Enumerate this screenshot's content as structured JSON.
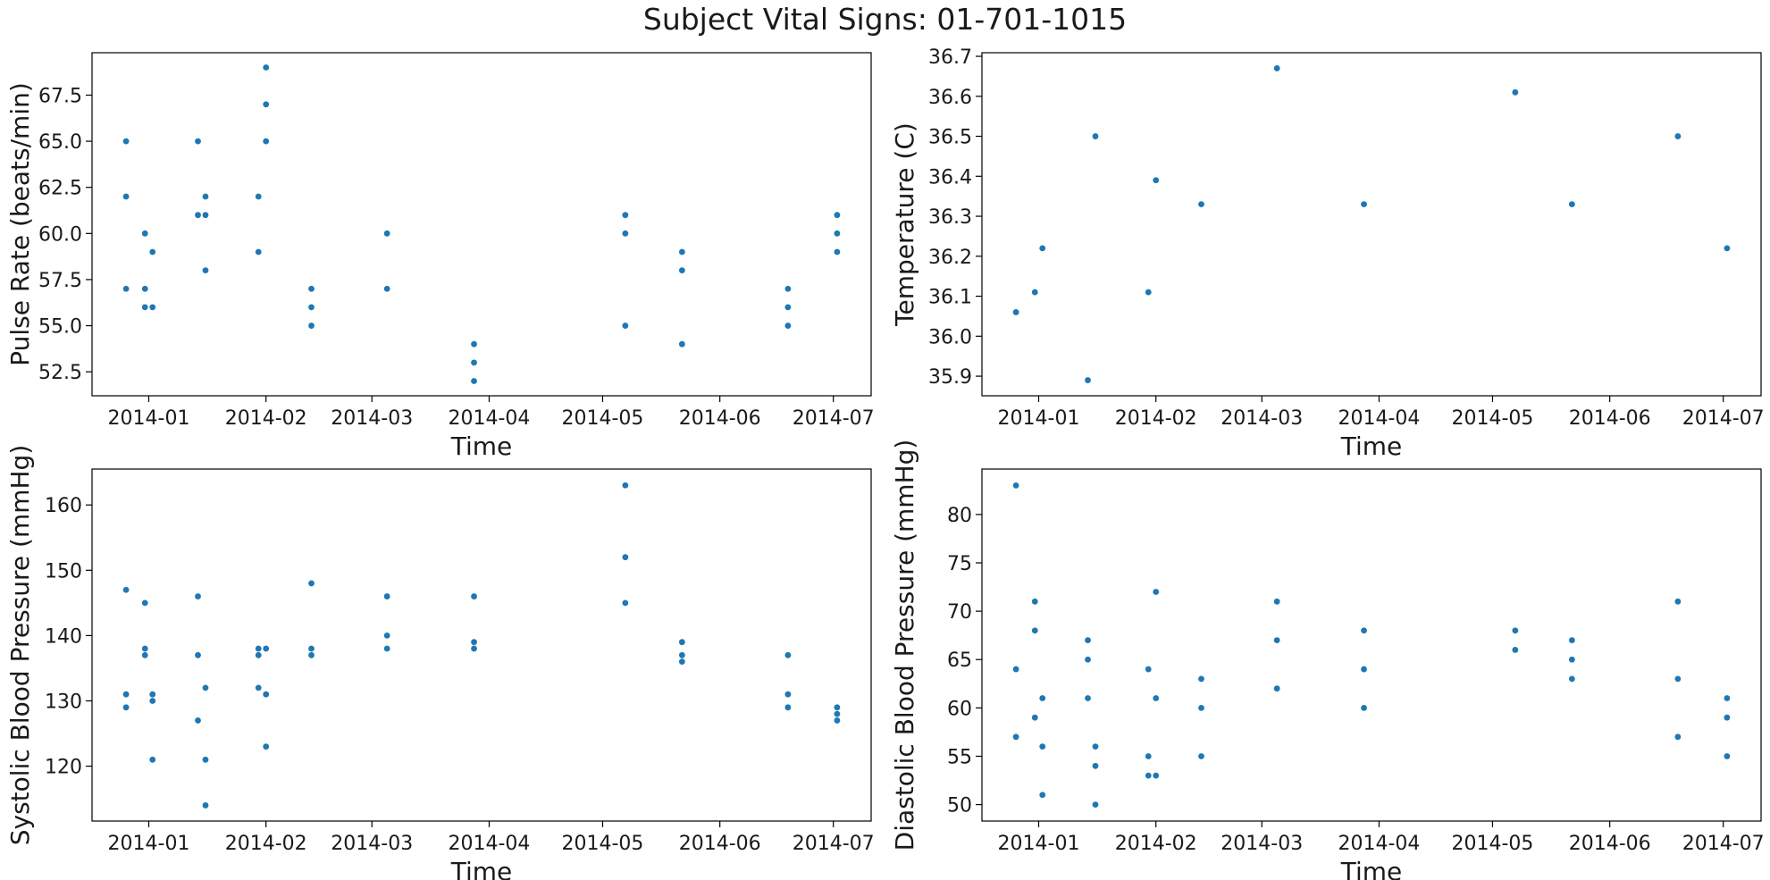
{
  "figure": {
    "title": "Subject Vital Signs: 01-701-1015"
  },
  "style": {
    "point_color": "#1f77b4",
    "axis_color": "#000000",
    "text_color": "#1a1a1a"
  },
  "chart_data": [
    {
      "type": "scatter",
      "id": "pulse",
      "xlabel": "Time",
      "ylabel": "Pulse Rate (beats/min)",
      "grid": false,
      "x_ticks": [
        "2014-01",
        "2014-02",
        "2014-03",
        "2014-04",
        "2014-05",
        "2014-06",
        "2014-07"
      ],
      "y_ticks": [
        "52.5",
        "55.0",
        "57.5",
        "60.0",
        "62.5",
        "65.0",
        "67.5"
      ],
      "xlim": [
        "2013-12-17",
        "2014-07-11"
      ],
      "ylim": [
        51.2,
        69.8
      ],
      "points": [
        {
          "x": "2013-12-26",
          "y": 65
        },
        {
          "x": "2013-12-26",
          "y": 62
        },
        {
          "x": "2013-12-26",
          "y": 57
        },
        {
          "x": "2013-12-31",
          "y": 60
        },
        {
          "x": "2013-12-31",
          "y": 57
        },
        {
          "x": "2013-12-31",
          "y": 56
        },
        {
          "x": "2014-01-02",
          "y": 59
        },
        {
          "x": "2014-01-02",
          "y": 56
        },
        {
          "x": "2014-01-14",
          "y": 65
        },
        {
          "x": "2014-01-14",
          "y": 61
        },
        {
          "x": "2014-01-16",
          "y": 62
        },
        {
          "x": "2014-01-16",
          "y": 61
        },
        {
          "x": "2014-01-16",
          "y": 58
        },
        {
          "x": "2014-01-30",
          "y": 62
        },
        {
          "x": "2014-01-30",
          "y": 59
        },
        {
          "x": "2014-02-01",
          "y": 69
        },
        {
          "x": "2014-02-01",
          "y": 67
        },
        {
          "x": "2014-02-01",
          "y": 65
        },
        {
          "x": "2014-02-13",
          "y": 57
        },
        {
          "x": "2014-02-13",
          "y": 56
        },
        {
          "x": "2014-02-13",
          "y": 55
        },
        {
          "x": "2014-03-05",
          "y": 60
        },
        {
          "x": "2014-03-05",
          "y": 57
        },
        {
          "x": "2014-03-28",
          "y": 54
        },
        {
          "x": "2014-03-28",
          "y": 53
        },
        {
          "x": "2014-03-28",
          "y": 52
        },
        {
          "x": "2014-05-07",
          "y": 61
        },
        {
          "x": "2014-05-07",
          "y": 60
        },
        {
          "x": "2014-05-07",
          "y": 55
        },
        {
          "x": "2014-05-22",
          "y": 59
        },
        {
          "x": "2014-05-22",
          "y": 58
        },
        {
          "x": "2014-05-22",
          "y": 54
        },
        {
          "x": "2014-06-19",
          "y": 57
        },
        {
          "x": "2014-06-19",
          "y": 56
        },
        {
          "x": "2014-06-19",
          "y": 55
        },
        {
          "x": "2014-07-02",
          "y": 61
        },
        {
          "x": "2014-07-02",
          "y": 60
        },
        {
          "x": "2014-07-02",
          "y": 59
        }
      ]
    },
    {
      "type": "scatter",
      "id": "temperature",
      "xlabel": "Time",
      "ylabel": "Temperature (C)",
      "grid": false,
      "x_ticks": [
        "2014-01",
        "2014-02",
        "2014-03",
        "2014-04",
        "2014-05",
        "2014-06",
        "2014-07"
      ],
      "y_ticks": [
        "35.9",
        "36.0",
        "36.1",
        "36.2",
        "36.3",
        "36.4",
        "36.5",
        "36.6",
        "36.7"
      ],
      "xlim": [
        "2013-12-17",
        "2014-07-11"
      ],
      "ylim": [
        35.851,
        36.709
      ],
      "points": [
        {
          "x": "2013-12-26",
          "y": 36.06
        },
        {
          "x": "2013-12-31",
          "y": 36.11
        },
        {
          "x": "2014-01-02",
          "y": 36.22
        },
        {
          "x": "2014-01-14",
          "y": 35.89
        },
        {
          "x": "2014-01-16",
          "y": 36.5
        },
        {
          "x": "2014-01-30",
          "y": 36.11
        },
        {
          "x": "2014-02-01",
          "y": 36.39
        },
        {
          "x": "2014-02-13",
          "y": 36.33
        },
        {
          "x": "2014-03-05",
          "y": 36.67
        },
        {
          "x": "2014-03-28",
          "y": 36.33
        },
        {
          "x": "2014-05-07",
          "y": 36.61
        },
        {
          "x": "2014-05-22",
          "y": 36.33
        },
        {
          "x": "2014-06-19",
          "y": 36.5
        },
        {
          "x": "2014-07-02",
          "y": 36.22
        }
      ]
    },
    {
      "type": "scatter",
      "id": "systolic",
      "xlabel": "Time",
      "ylabel": "Systolic Blood Pressure (mmHg)",
      "grid": false,
      "x_ticks": [
        "2014-01",
        "2014-02",
        "2014-03",
        "2014-04",
        "2014-05",
        "2014-06",
        "2014-07"
      ],
      "y_ticks": [
        "120",
        "130",
        "140",
        "150",
        "160"
      ],
      "xlim": [
        "2013-12-17",
        "2014-07-11"
      ],
      "ylim": [
        111.6,
        165.5
      ],
      "points": [
        {
          "x": "2013-12-26",
          "y": 147
        },
        {
          "x": "2013-12-26",
          "y": 131
        },
        {
          "x": "2013-12-26",
          "y": 129
        },
        {
          "x": "2013-12-31",
          "y": 145
        },
        {
          "x": "2013-12-31",
          "y": 138
        },
        {
          "x": "2013-12-31",
          "y": 137
        },
        {
          "x": "2014-01-02",
          "y": 131
        },
        {
          "x": "2014-01-02",
          "y": 130
        },
        {
          "x": "2014-01-02",
          "y": 121
        },
        {
          "x": "2014-01-14",
          "y": 146
        },
        {
          "x": "2014-01-14",
          "y": 137
        },
        {
          "x": "2014-01-14",
          "y": 127
        },
        {
          "x": "2014-01-16",
          "y": 132
        },
        {
          "x": "2014-01-16",
          "y": 121
        },
        {
          "x": "2014-01-16",
          "y": 114
        },
        {
          "x": "2014-01-30",
          "y": 138
        },
        {
          "x": "2014-01-30",
          "y": 137
        },
        {
          "x": "2014-01-30",
          "y": 132
        },
        {
          "x": "2014-02-01",
          "y": 138
        },
        {
          "x": "2014-02-01",
          "y": 131
        },
        {
          "x": "2014-02-01",
          "y": 123
        },
        {
          "x": "2014-02-13",
          "y": 148
        },
        {
          "x": "2014-02-13",
          "y": 138
        },
        {
          "x": "2014-02-13",
          "y": 137
        },
        {
          "x": "2014-03-05",
          "y": 146
        },
        {
          "x": "2014-03-05",
          "y": 140
        },
        {
          "x": "2014-03-05",
          "y": 138
        },
        {
          "x": "2014-03-28",
          "y": 146
        },
        {
          "x": "2014-03-28",
          "y": 139
        },
        {
          "x": "2014-03-28",
          "y": 138
        },
        {
          "x": "2014-05-07",
          "y": 163
        },
        {
          "x": "2014-05-07",
          "y": 152
        },
        {
          "x": "2014-05-07",
          "y": 145
        },
        {
          "x": "2014-05-22",
          "y": 139
        },
        {
          "x": "2014-05-22",
          "y": 137
        },
        {
          "x": "2014-05-22",
          "y": 136
        },
        {
          "x": "2014-06-19",
          "y": 137
        },
        {
          "x": "2014-06-19",
          "y": 131
        },
        {
          "x": "2014-06-19",
          "y": 129
        },
        {
          "x": "2014-07-02",
          "y": 129
        },
        {
          "x": "2014-07-02",
          "y": 128
        },
        {
          "x": "2014-07-02",
          "y": 127
        }
      ]
    },
    {
      "type": "scatter",
      "id": "diastolic",
      "xlabel": "Time",
      "ylabel": "Diastolic Blood Pressure (mmHg)",
      "grid": false,
      "x_ticks": [
        "2014-01",
        "2014-02",
        "2014-03",
        "2014-04",
        "2014-05",
        "2014-06",
        "2014-07"
      ],
      "y_ticks": [
        "50",
        "55",
        "60",
        "65",
        "70",
        "75",
        "80"
      ],
      "xlim": [
        "2013-12-17",
        "2014-07-11"
      ],
      "ylim": [
        48.3,
        84.7
      ],
      "points": [
        {
          "x": "2013-12-26",
          "y": 83
        },
        {
          "x": "2013-12-26",
          "y": 64
        },
        {
          "x": "2013-12-26",
          "y": 57
        },
        {
          "x": "2013-12-31",
          "y": 71
        },
        {
          "x": "2013-12-31",
          "y": 68
        },
        {
          "x": "2013-12-31",
          "y": 59
        },
        {
          "x": "2014-01-02",
          "y": 61
        },
        {
          "x": "2014-01-02",
          "y": 56
        },
        {
          "x": "2014-01-02",
          "y": 51
        },
        {
          "x": "2014-01-14",
          "y": 67
        },
        {
          "x": "2014-01-14",
          "y": 65
        },
        {
          "x": "2014-01-14",
          "y": 61
        },
        {
          "x": "2014-01-16",
          "y": 56
        },
        {
          "x": "2014-01-16",
          "y": 54
        },
        {
          "x": "2014-01-16",
          "y": 50
        },
        {
          "x": "2014-01-30",
          "y": 64
        },
        {
          "x": "2014-01-30",
          "y": 55
        },
        {
          "x": "2014-01-30",
          "y": 53
        },
        {
          "x": "2014-02-01",
          "y": 72
        },
        {
          "x": "2014-02-01",
          "y": 61
        },
        {
          "x": "2014-02-01",
          "y": 53
        },
        {
          "x": "2014-02-13",
          "y": 63
        },
        {
          "x": "2014-02-13",
          "y": 60
        },
        {
          "x": "2014-02-13",
          "y": 55
        },
        {
          "x": "2014-03-05",
          "y": 71
        },
        {
          "x": "2014-03-05",
          "y": 67
        },
        {
          "x": "2014-03-05",
          "y": 62
        },
        {
          "x": "2014-03-28",
          "y": 68
        },
        {
          "x": "2014-03-28",
          "y": 64
        },
        {
          "x": "2014-03-28",
          "y": 60
        },
        {
          "x": "2014-05-07",
          "y": 68
        },
        {
          "x": "2014-05-07",
          "y": 66
        },
        {
          "x": "2014-05-22",
          "y": 67
        },
        {
          "x": "2014-05-22",
          "y": 65
        },
        {
          "x": "2014-05-22",
          "y": 63
        },
        {
          "x": "2014-06-19",
          "y": 71
        },
        {
          "x": "2014-06-19",
          "y": 63
        },
        {
          "x": "2014-06-19",
          "y": 57
        },
        {
          "x": "2014-07-02",
          "y": 61
        },
        {
          "x": "2014-07-02",
          "y": 59
        },
        {
          "x": "2014-07-02",
          "y": 55
        }
      ]
    }
  ]
}
